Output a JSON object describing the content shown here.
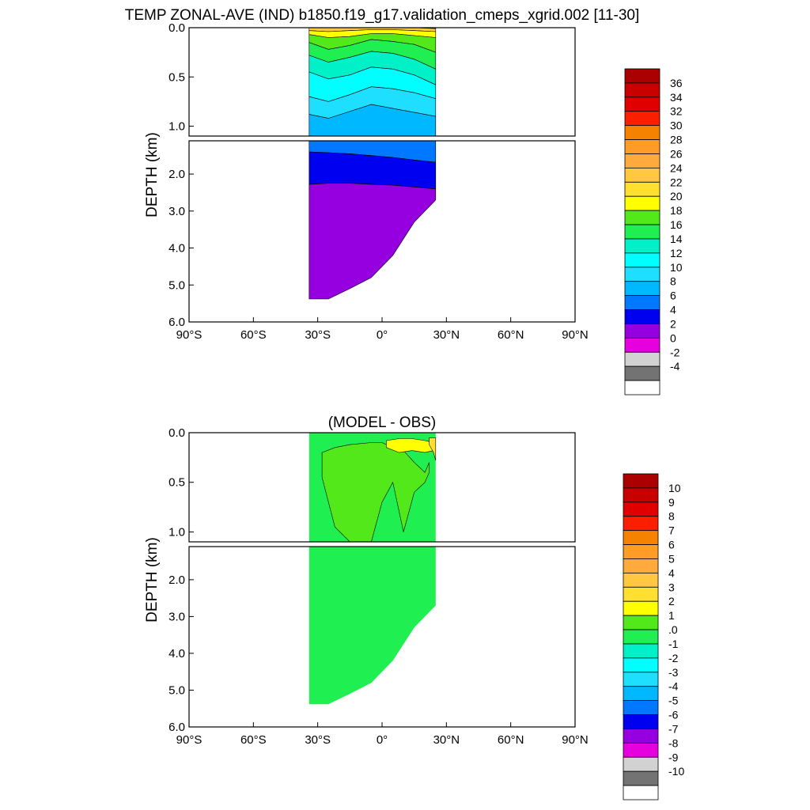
{
  "title": "TEMP ZONAL-AVE (IND) b1850.f19_g17.validation_cmeps_xgrid.002 [11-30]",
  "chart_data": [
    {
      "type": "heatmap",
      "name": "temperature",
      "title": "TEMP ZONAL-AVE (IND) b1850.f19_g17.validation_cmeps_xgrid.002 [11-30]",
      "xlabel": "",
      "ylabel": "DEPTH (km)",
      "x_ticks": [
        "90°S",
        "60°S",
        "30°S",
        "0°",
        "30°N",
        "60°N",
        "90°N"
      ],
      "x_tick_values": [
        -90,
        -60,
        -30,
        0,
        30,
        60,
        90
      ],
      "xlim": [
        -90,
        90
      ],
      "upper_y_ticks": [
        "0.0",
        "0.5",
        "1.0"
      ],
      "upper_y_tick_values": [
        0,
        0.5,
        1.0
      ],
      "upper_ylim": [
        0,
        1.1
      ],
      "lower_y_ticks": [
        "2.0",
        "3.0",
        "4.0",
        "5.0",
        "6.0"
      ],
      "lower_y_tick_values": [
        2,
        3,
        4,
        5,
        6
      ],
      "lower_ylim": [
        1.1,
        6.0
      ],
      "data_lat_range": [
        -34,
        25
      ],
      "colorbar": {
        "labels": [
          "36",
          "34",
          "32",
          "30",
          "28",
          "26",
          "24",
          "22",
          "20",
          "18",
          "16",
          "14",
          "12",
          "10",
          "8",
          "6",
          "4",
          "2",
          "0",
          "-2",
          "-4"
        ],
        "colors": [
          "#aa0000",
          "#c80000",
          "#e00000",
          "#fb1f00",
          "#f58200",
          "#ff9c28",
          "#ffaa3c",
          "#ffc840",
          "#ffe030",
          "#ffff00",
          "#52e819",
          "#20ef51",
          "#00f0c8",
          "#00ffff",
          "#1edfff",
          "#00b8ff",
          "#0078ff",
          "#0000f0",
          "#9600e0",
          "#e600e0",
          "#d2d2d2",
          "#737373",
          "#ffffff"
        ]
      },
      "bands": {
        "upper": [
          {
            "value": 27,
            "top": [
              0,
              0,
              0,
              0,
              0,
              0,
              0
            ],
            "bottom": [
              0,
              0,
              0,
              0,
              0,
              0,
              0.01
            ]
          },
          {
            "value": 23,
            "top": [
              0,
              0,
              0,
              0,
              0,
              0,
              0.01
            ],
            "bottom": [
              0.03,
              0.04,
              0.03,
              0.02,
              0.02,
              0.03,
              0.04
            ]
          },
          {
            "value": 19,
            "top": [
              0.03,
              0.04,
              0.03,
              0.02,
              0.02,
              0.03,
              0.04
            ],
            "bottom": [
              0.07,
              0.1,
              0.09,
              0.06,
              0.06,
              0.08,
              0.1
            ]
          },
          {
            "value": 17,
            "top": [
              0.07,
              0.1,
              0.09,
              0.06,
              0.06,
              0.08,
              0.1
            ],
            "bottom": [
              0.15,
              0.22,
              0.18,
              0.12,
              0.14,
              0.17,
              0.25
            ]
          },
          {
            "value": 15,
            "top": [
              0.15,
              0.22,
              0.18,
              0.12,
              0.14,
              0.17,
              0.25
            ],
            "bottom": [
              0.28,
              0.35,
              0.3,
              0.24,
              0.26,
              0.32,
              0.42
            ]
          },
          {
            "value": 13,
            "top": [
              0.28,
              0.35,
              0.3,
              0.24,
              0.26,
              0.32,
              0.42
            ],
            "bottom": [
              0.45,
              0.52,
              0.48,
              0.4,
              0.42,
              0.48,
              0.58
            ]
          },
          {
            "value": 11,
            "top": [
              0.45,
              0.52,
              0.48,
              0.4,
              0.42,
              0.48,
              0.58
            ],
            "bottom": [
              0.7,
              0.75,
              0.68,
              0.6,
              0.62,
              0.66,
              0.72
            ]
          },
          {
            "value": 9,
            "top": [
              0.7,
              0.75,
              0.68,
              0.6,
              0.62,
              0.66,
              0.72
            ],
            "bottom": [
              0.88,
              0.92,
              0.85,
              0.78,
              0.82,
              0.86,
              0.9
            ]
          },
          {
            "value": 7,
            "top": [
              0.88,
              0.92,
              0.85,
              0.78,
              0.82,
              0.86,
              0.9
            ],
            "bottom": [
              1.1,
              1.1,
              1.1,
              1.1,
              1.1,
              1.1,
              1.1
            ]
          }
        ],
        "lower": [
          {
            "value": 5,
            "top": [
              1.1,
              1.1,
              1.1,
              1.1,
              1.1,
              1.1,
              1.1
            ],
            "bottom": [
              1.4,
              1.42,
              1.45,
              1.5,
              1.55,
              1.62,
              1.68
            ]
          },
          {
            "value": 3,
            "top": [
              1.4,
              1.42,
              1.45,
              1.5,
              1.55,
              1.62,
              1.68
            ],
            "bottom": [
              2.28,
              2.25,
              2.25,
              2.28,
              2.3,
              2.35,
              2.4
            ]
          },
          {
            "value": 1,
            "top": [
              2.28,
              2.25,
              2.25,
              2.28,
              2.3,
              2.35,
              2.4
            ],
            "bottom": [
              5.38,
              5.38,
              5.1,
              4.8,
              4.2,
              3.3,
              2.7
            ]
          }
        ]
      },
      "band_lats": [
        -34,
        -25,
        -15,
        -5,
        5,
        15,
        25
      ]
    },
    {
      "type": "heatmap",
      "name": "difference",
      "title": "(MODEL - OBS)",
      "xlabel": "",
      "ylabel": "DEPTH (km)",
      "x_ticks": [
        "90°S",
        "60°S",
        "30°S",
        "0°",
        "30°N",
        "60°N",
        "90°N"
      ],
      "x_tick_values": [
        -90,
        -60,
        -30,
        0,
        30,
        60,
        90
      ],
      "xlim": [
        -90,
        90
      ],
      "upper_y_ticks": [
        "0.0",
        "0.5",
        "1.0"
      ],
      "upper_y_tick_values": [
        0,
        0.5,
        1.0
      ],
      "upper_ylim": [
        0,
        1.1
      ],
      "lower_y_ticks": [
        "2.0",
        "3.0",
        "4.0",
        "5.0",
        "6.0"
      ],
      "lower_y_tick_values": [
        2,
        3,
        4,
        5,
        6
      ],
      "lower_ylim": [
        1.1,
        6.0
      ],
      "data_lat_range": [
        -34,
        25
      ],
      "colorbar": {
        "labels": [
          "10",
          "9",
          "8",
          "7",
          "6",
          "5",
          "4",
          "3",
          "2",
          "1",
          ".0",
          "-1",
          "-2",
          "-3",
          "-4",
          "-5",
          "-6",
          "-7",
          "-8",
          "-9",
          "-10"
        ],
        "colors": [
          "#aa0000",
          "#c80000",
          "#e00000",
          "#fb1f00",
          "#f58200",
          "#ff9c28",
          "#ffaa3c",
          "#ffc840",
          "#ffe030",
          "#ffff00",
          "#52e819",
          "#20ef51",
          "#00f0c8",
          "#00ffff",
          "#1edfff",
          "#00b8ff",
          "#0078ff",
          "#0000f0",
          "#9600e0",
          "#e600e0",
          "#d2d2d2",
          "#737373",
          "#ffffff"
        ]
      },
      "base_value": -0.5,
      "regions": [
        {
          "value": 0.5,
          "lat": [
            -28,
            -22,
            -15,
            -5,
            0,
            5,
            10,
            15,
            20,
            22
          ],
          "top": [
            0.2,
            0.15,
            0.12,
            0.1,
            0.1,
            0.15,
            0.18,
            0.3,
            0.4,
            0.3
          ],
          "bottom": [
            0.45,
            0.95,
            1.1,
            1.1,
            0.7,
            0.5,
            1.0,
            0.6,
            0.5,
            0.4
          ]
        },
        {
          "value": 1.5,
          "lat": [
            2,
            8,
            14,
            20,
            24
          ],
          "top": [
            0.08,
            0.06,
            0.06,
            0.08,
            0.1
          ],
          "bottom": [
            0.15,
            0.2,
            0.18,
            0.2,
            0.18
          ]
        },
        {
          "value": 2.5,
          "lat": [
            22,
            24,
            25
          ],
          "top": [
            0.05,
            0.05,
            0.05
          ],
          "bottom": [
            0.12,
            0.2,
            0.28
          ]
        }
      ]
    }
  ]
}
